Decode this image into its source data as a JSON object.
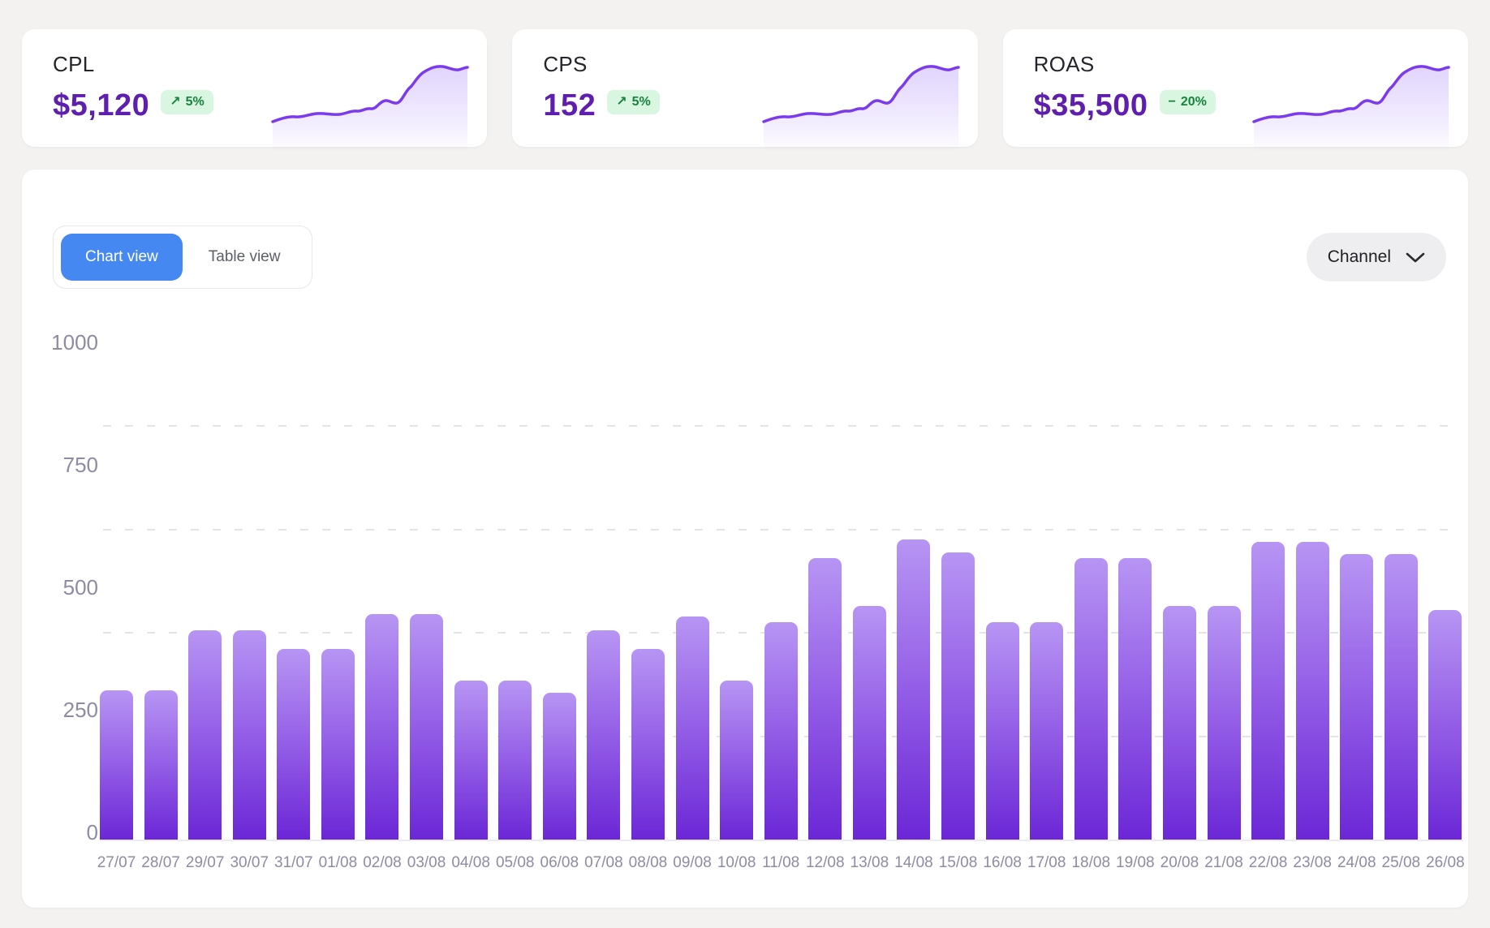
{
  "kpi_cards": [
    {
      "label": "CPL",
      "value": "$5,120",
      "badge": {
        "icon": "↗",
        "text": "5%",
        "direction": "up"
      }
    },
    {
      "label": "CPS",
      "value": "152",
      "badge": {
        "icon": "↗",
        "text": "5%",
        "direction": "up"
      }
    },
    {
      "label": "ROAS",
      "value": "$35,500",
      "badge": {
        "icon": "−",
        "text": "20%",
        "direction": "flat"
      }
    }
  ],
  "view_toggle": {
    "options": [
      "Chart view",
      "Table view"
    ],
    "active": "Chart view"
  },
  "channel_dropdown": {
    "label": "Channel"
  },
  "chart_data": {
    "type": "bar",
    "title": "",
    "xlabel": "",
    "ylabel": "",
    "ylim": [
      0,
      1000
    ],
    "y_ticks": [
      0,
      250,
      500,
      750,
      1000
    ],
    "grid": "horizontal-dashed",
    "legend": "none",
    "categories": [
      "27/07",
      "28/07",
      "29/07",
      "30/07",
      "31/07",
      "01/08",
      "02/08",
      "03/08",
      "04/08",
      "05/08",
      "06/08",
      "07/08",
      "08/08",
      "09/08",
      "10/08",
      "11/08",
      "12/08",
      "13/08",
      "14/08",
      "15/08",
      "16/08",
      "17/08",
      "18/08",
      "19/08",
      "20/08",
      "21/08",
      "22/08",
      "23/08",
      "24/08",
      "25/08",
      "26/08"
    ],
    "values": [
      360,
      360,
      505,
      505,
      460,
      460,
      545,
      545,
      385,
      385,
      355,
      505,
      460,
      540,
      385,
      525,
      680,
      565,
      725,
      695,
      525,
      525,
      680,
      680,
      565,
      565,
      720,
      720,
      690,
      690,
      555
    ]
  },
  "colors": {
    "page_bg": "#f3f2f0",
    "card_bg": "#ffffff",
    "kpi_value_purple": "#5e1fae",
    "badge_bg_green": "#d9f6e1",
    "badge_text_green": "#17833c",
    "active_toggle_blue": "#4688f1",
    "bar_gradient_top": "#b795f3",
    "bar_gradient_bottom": "#6b27d6",
    "sparkline_stroke": "#7c3aed",
    "axis_label_gray": "#8f8ba3"
  }
}
